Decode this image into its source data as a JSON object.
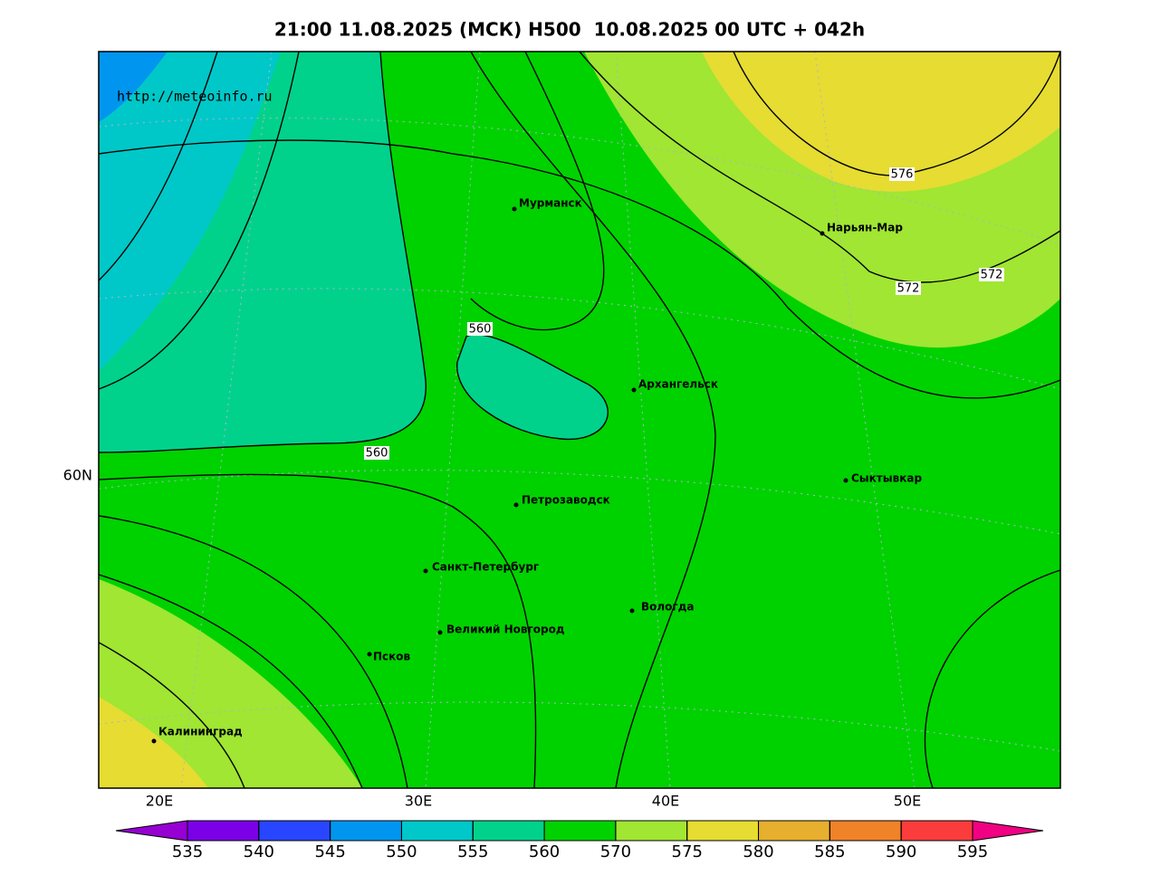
{
  "title": "21:00 11.08.2025 (МСК) H500  10.08.2025 00 UTC + 042h",
  "source_url": "http://meteoinfo.ru",
  "map": {
    "lon_labels": [
      "20E",
      "30E",
      "40E",
      "50E"
    ],
    "lat_labels": [
      "60N"
    ],
    "cities": [
      "Мурманск",
      "Нарьян-Мар",
      "Архангельск",
      "Сыктывкар",
      "Петрозаводск",
      "Санкт-Петербург",
      "Вологда",
      "Великий Новгород",
      "Псков",
      "Калининград"
    ],
    "contour_labels": [
      560,
      560,
      576,
      572,
      572
    ]
  },
  "colorbar": {
    "levels": [
      535,
      540,
      545,
      550,
      555,
      560,
      570,
      575,
      580,
      585,
      590,
      595
    ],
    "colors": [
      "#9600d2",
      "#7b00e6",
      "#2846ff",
      "#0096f0",
      "#00c8c8",
      "#00d28c",
      "#00d200",
      "#a0e632",
      "#e6dc32",
      "#e6af2d",
      "#f08228",
      "#fa3c3c",
      "#f00082"
    ]
  }
}
